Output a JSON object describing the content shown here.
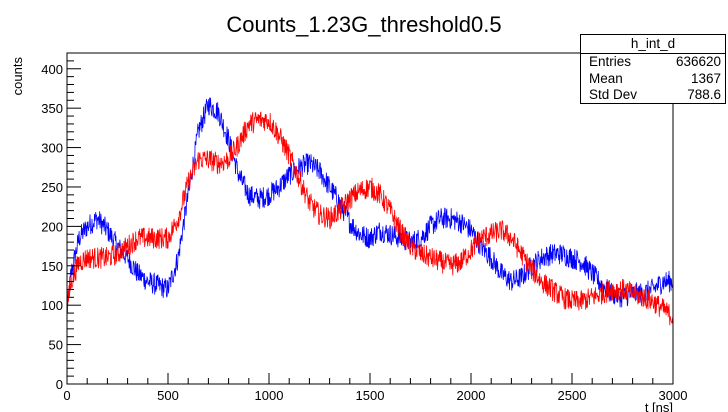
{
  "chart_data": {
    "type": "line",
    "title": "Counts_1.23G_threshold0.5",
    "xlabel": "t [ns]",
    "ylabel": "counts",
    "xlim": [
      0,
      3000
    ],
    "ylim": [
      0,
      420
    ],
    "x_ticks": [
      0,
      500,
      1000,
      1500,
      2000,
      2500,
      3000
    ],
    "y_ticks": [
      0,
      50,
      100,
      150,
      200,
      250,
      300,
      350,
      400
    ],
    "grid": false,
    "series": [
      {
        "color": "#0000ff",
        "style": "noisy-step",
        "noise_amplitude": 14,
        "x": [
          0,
          20,
          60,
          100,
          150,
          200,
          250,
          300,
          350,
          400,
          450,
          500,
          550,
          600,
          650,
          700,
          750,
          800,
          850,
          900,
          950,
          1000,
          1050,
          1100,
          1150,
          1200,
          1250,
          1300,
          1350,
          1400,
          1450,
          1500,
          1550,
          1600,
          1650,
          1700,
          1750,
          1800,
          1850,
          1900,
          1950,
          2000,
          2050,
          2100,
          2150,
          2200,
          2250,
          2300,
          2350,
          2400,
          2450,
          2500,
          2550,
          2600,
          2650,
          2700,
          2750,
          2800,
          2850,
          2900,
          2950,
          3000
        ],
        "y": [
          90,
          140,
          185,
          200,
          210,
          195,
          175,
          160,
          140,
          130,
          125,
          120,
          160,
          240,
          320,
          355,
          345,
          310,
          265,
          240,
          235,
          240,
          250,
          265,
          275,
          280,
          270,
          250,
          230,
          205,
          190,
          185,
          195,
          190,
          185,
          180,
          185,
          200,
          210,
          210,
          205,
          195,
          175,
          160,
          140,
          130,
          135,
          150,
          160,
          165,
          165,
          160,
          155,
          140,
          125,
          115,
          110,
          115,
          115,
          120,
          130,
          130
        ]
      },
      {
        "color": "#ff0000",
        "style": "noisy-step",
        "noise_amplitude": 14,
        "x": [
          0,
          20,
          60,
          100,
          150,
          200,
          250,
          300,
          350,
          400,
          450,
          500,
          550,
          600,
          650,
          700,
          750,
          800,
          850,
          900,
          950,
          1000,
          1050,
          1100,
          1150,
          1200,
          1250,
          1300,
          1350,
          1400,
          1450,
          1500,
          1550,
          1600,
          1650,
          1700,
          1750,
          1800,
          1850,
          1900,
          1950,
          2000,
          2050,
          2100,
          2150,
          2200,
          2250,
          2300,
          2350,
          2400,
          2450,
          2500,
          2550,
          2600,
          2650,
          2700,
          2750,
          2800,
          2850,
          2900,
          2950,
          3000
        ],
        "y": [
          95,
          130,
          155,
          160,
          160,
          160,
          165,
          175,
          185,
          185,
          185,
          185,
          210,
          255,
          285,
          285,
          280,
          285,
          305,
          330,
          335,
          335,
          315,
          290,
          260,
          230,
          215,
          210,
          220,
          235,
          245,
          250,
          240,
          220,
          195,
          175,
          165,
          160,
          155,
          150,
          155,
          170,
          185,
          190,
          195,
          185,
          165,
          145,
          130,
          120,
          110,
          105,
          105,
          110,
          115,
          120,
          120,
          115,
          110,
          105,
          95,
          85
        ]
      }
    ],
    "stats_box": {
      "title": "h_int_d",
      "rows": [
        {
          "label": "Entries",
          "value": "636620"
        },
        {
          "label": "Mean",
          "value": "1367"
        },
        {
          "label": "Std Dev",
          "value": "788.6"
        }
      ]
    }
  }
}
